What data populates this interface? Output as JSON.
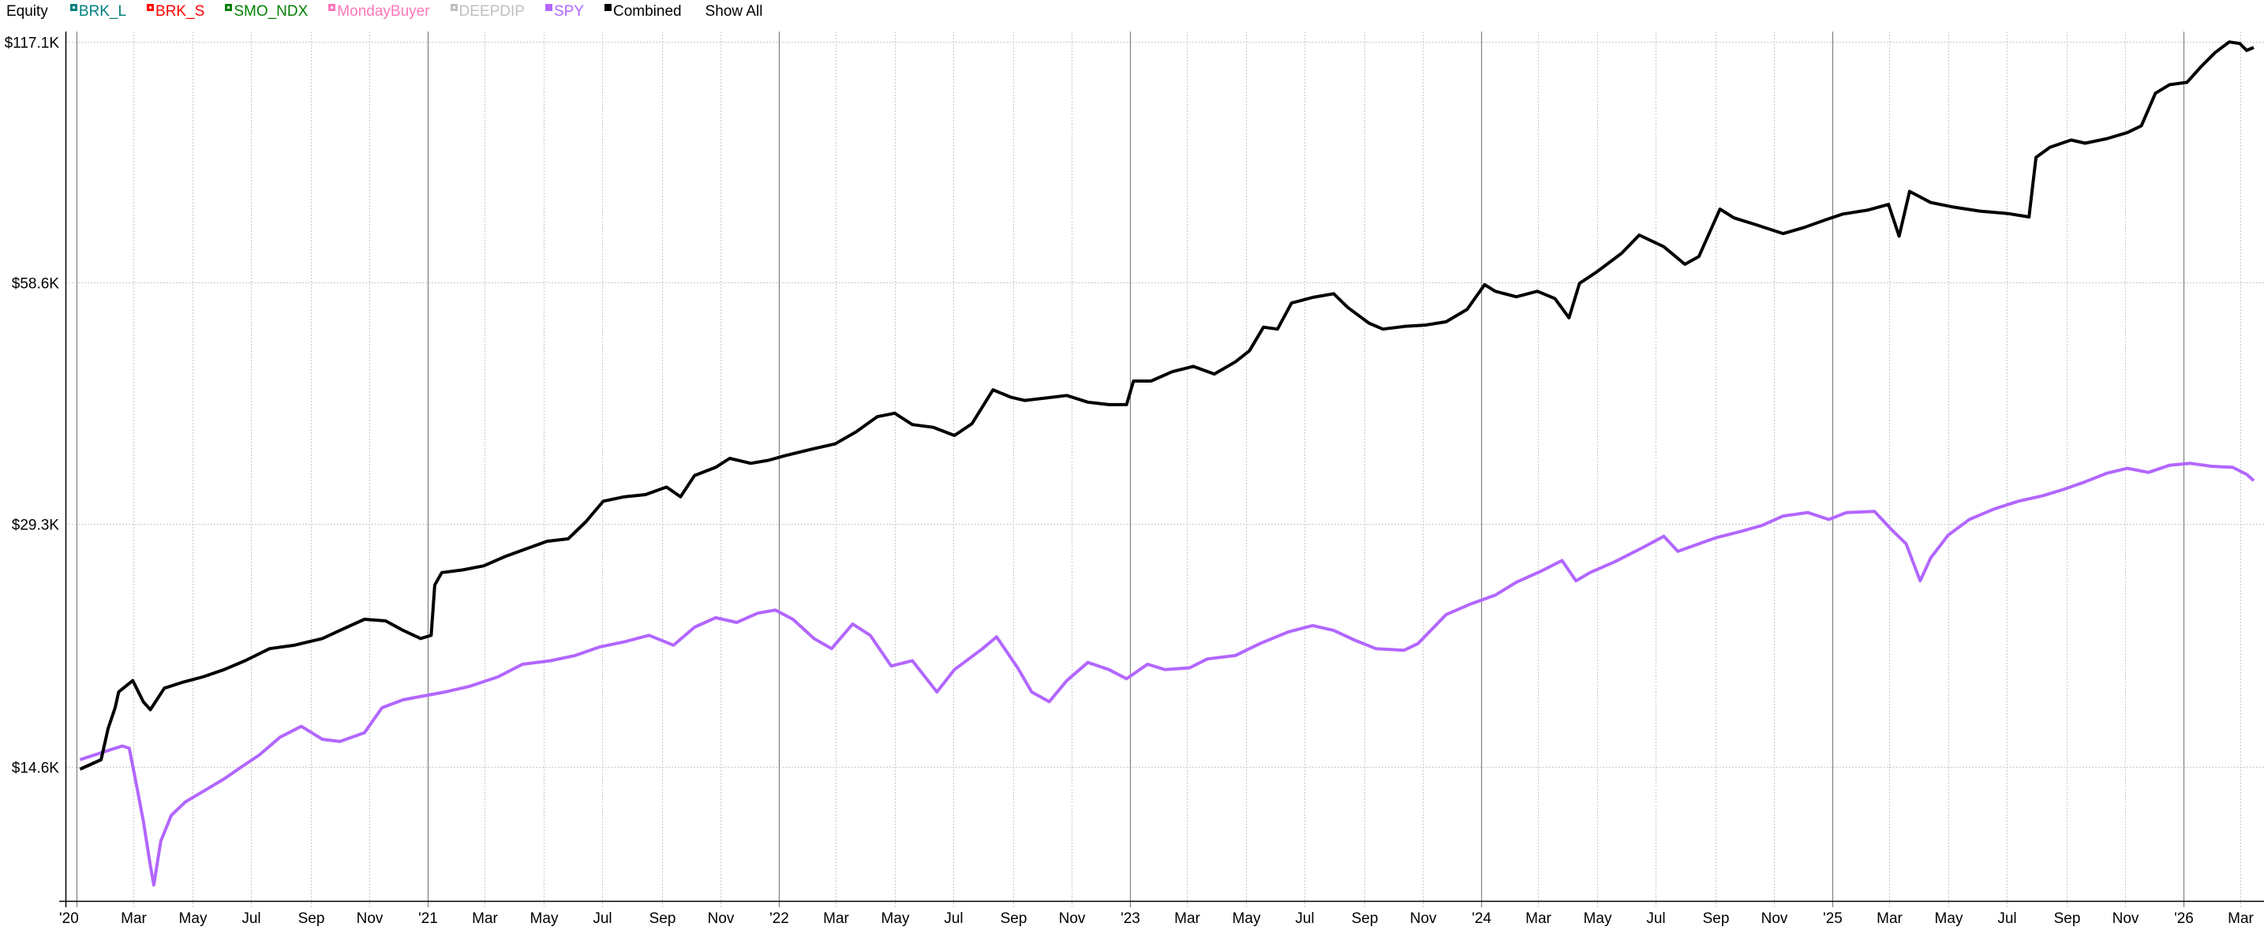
{
  "header": {
    "title": "Equity",
    "show_all_label": "Show All"
  },
  "legend": [
    {
      "label": "BRK_L",
      "color": "#008080",
      "enabled": false
    },
    {
      "label": "BRK_S",
      "color": "#ff0000",
      "enabled": false
    },
    {
      "label": "SMO_NDX",
      "color": "#008000",
      "enabled": false
    },
    {
      "label": "MondayBuyer",
      "color": "#ff77bb",
      "enabled": false
    },
    {
      "label": "DEEPDIP",
      "color": "#c0c0c0",
      "enabled": false
    },
    {
      "label": "SPY",
      "color": "#b266ff",
      "enabled": true
    },
    {
      "label": "Combined",
      "color": "#000000",
      "enabled": true
    }
  ],
  "chart_data": {
    "type": "line",
    "title": "Equity",
    "xlabel": "",
    "ylabel": "",
    "y_scale": "log",
    "ylim": [
      9800,
      120000
    ],
    "y_ticks": [
      {
        "value": 117100,
        "label": "$117.1K"
      },
      {
        "value": 58600,
        "label": "$58.6K"
      },
      {
        "value": 29300,
        "label": "$29.3K"
      },
      {
        "value": 14600,
        "label": "$14.6K"
      }
    ],
    "x_range": [
      2020.0,
      2026.2
    ],
    "x_ticks": [
      {
        "x": 2020.0,
        "label": "'20",
        "major": true
      },
      {
        "x": 2020.162,
        "label": "Mar"
      },
      {
        "x": 2020.33,
        "label": "May"
      },
      {
        "x": 2020.497,
        "label": "Jul"
      },
      {
        "x": 2020.667,
        "label": "Sep"
      },
      {
        "x": 2020.833,
        "label": "Nov"
      },
      {
        "x": 2021.0,
        "label": "'21",
        "major": true
      },
      {
        "x": 2021.162,
        "label": "Mar"
      },
      {
        "x": 2021.33,
        "label": "May"
      },
      {
        "x": 2021.497,
        "label": "Jul"
      },
      {
        "x": 2021.667,
        "label": "Sep"
      },
      {
        "x": 2021.833,
        "label": "Nov"
      },
      {
        "x": 2022.0,
        "label": "'22",
        "major": true
      },
      {
        "x": 2022.162,
        "label": "Mar"
      },
      {
        "x": 2022.33,
        "label": "May"
      },
      {
        "x": 2022.497,
        "label": "Jul"
      },
      {
        "x": 2022.667,
        "label": "Sep"
      },
      {
        "x": 2022.833,
        "label": "Nov"
      },
      {
        "x": 2023.0,
        "label": "'23",
        "major": true
      },
      {
        "x": 2023.162,
        "label": "Mar"
      },
      {
        "x": 2023.33,
        "label": "May"
      },
      {
        "x": 2023.497,
        "label": "Jul"
      },
      {
        "x": 2023.667,
        "label": "Sep"
      },
      {
        "x": 2023.833,
        "label": "Nov"
      },
      {
        "x": 2024.0,
        "label": "'24",
        "major": true
      },
      {
        "x": 2024.162,
        "label": "Mar"
      },
      {
        "x": 2024.33,
        "label": "May"
      },
      {
        "x": 2024.497,
        "label": "Jul"
      },
      {
        "x": 2024.667,
        "label": "Sep"
      },
      {
        "x": 2024.833,
        "label": "Nov"
      },
      {
        "x": 2025.0,
        "label": "'25",
        "major": true
      },
      {
        "x": 2025.162,
        "label": "Mar"
      },
      {
        "x": 2025.33,
        "label": "May"
      },
      {
        "x": 2025.497,
        "label": "Jul"
      },
      {
        "x": 2025.667,
        "label": "Sep"
      },
      {
        "x": 2025.833,
        "label": "Nov"
      },
      {
        "x": 2026.0,
        "label": "'26",
        "major": true
      },
      {
        "x": 2026.162,
        "label": "Mar"
      }
    ],
    "grid": true,
    "legend_position": "top",
    "series": [
      {
        "name": "Combined",
        "color": "#000000",
        "points": [
          [
            2020.01,
            14500
          ],
          [
            2020.04,
            14700
          ],
          [
            2020.07,
            14900
          ],
          [
            2020.09,
            16300
          ],
          [
            2020.11,
            17300
          ],
          [
            2020.12,
            18100
          ],
          [
            2020.16,
            18700
          ],
          [
            2020.19,
            17600
          ],
          [
            2020.21,
            17200
          ],
          [
            2020.25,
            18300
          ],
          [
            2020.3,
            18600
          ],
          [
            2020.36,
            18900
          ],
          [
            2020.42,
            19300
          ],
          [
            2020.48,
            19800
          ],
          [
            2020.55,
            20500
          ],
          [
            2020.62,
            20700
          ],
          [
            2020.7,
            21100
          ],
          [
            2020.76,
            21700
          ],
          [
            2020.82,
            22300
          ],
          [
            2020.88,
            22200
          ],
          [
            2020.93,
            21600
          ],
          [
            2020.98,
            21100
          ],
          [
            2021.01,
            21300
          ],
          [
            2021.02,
            24600
          ],
          [
            2021.04,
            25500
          ],
          [
            2021.1,
            25700
          ],
          [
            2021.16,
            26000
          ],
          [
            2021.22,
            26700
          ],
          [
            2021.28,
            27300
          ],
          [
            2021.34,
            27900
          ],
          [
            2021.4,
            28100
          ],
          [
            2021.45,
            29500
          ],
          [
            2021.5,
            31300
          ],
          [
            2021.56,
            31700
          ],
          [
            2021.62,
            31900
          ],
          [
            2021.68,
            32600
          ],
          [
            2021.72,
            31700
          ],
          [
            2021.76,
            33700
          ],
          [
            2021.82,
            34500
          ],
          [
            2021.86,
            35400
          ],
          [
            2021.92,
            34900
          ],
          [
            2021.97,
            35200
          ],
          [
            2022.02,
            35700
          ],
          [
            2022.1,
            36400
          ],
          [
            2022.16,
            36900
          ],
          [
            2022.22,
            38200
          ],
          [
            2022.28,
            39900
          ],
          [
            2022.33,
            40300
          ],
          [
            2022.38,
            39000
          ],
          [
            2022.44,
            38700
          ],
          [
            2022.5,
            37800
          ],
          [
            2022.55,
            39100
          ],
          [
            2022.61,
            43100
          ],
          [
            2022.66,
            42200
          ],
          [
            2022.7,
            41800
          ],
          [
            2022.76,
            42100
          ],
          [
            2022.82,
            42400
          ],
          [
            2022.88,
            41600
          ],
          [
            2022.94,
            41300
          ],
          [
            2022.99,
            41300
          ],
          [
            2023.01,
            44200
          ],
          [
            2023.06,
            44200
          ],
          [
            2023.12,
            45400
          ],
          [
            2023.18,
            46100
          ],
          [
            2023.24,
            45100
          ],
          [
            2023.3,
            46700
          ],
          [
            2023.34,
            48200
          ],
          [
            2023.38,
            51600
          ],
          [
            2023.42,
            51300
          ],
          [
            2023.46,
            55300
          ],
          [
            2023.52,
            56200
          ],
          [
            2023.58,
            56800
          ],
          [
            2023.62,
            54600
          ],
          [
            2023.68,
            52200
          ],
          [
            2023.72,
            51300
          ],
          [
            2023.78,
            51700
          ],
          [
            2023.84,
            51900
          ],
          [
            2023.9,
            52400
          ],
          [
            2023.96,
            54300
          ],
          [
            2024.01,
            58300
          ],
          [
            2024.04,
            57200
          ],
          [
            2024.1,
            56300
          ],
          [
            2024.16,
            57200
          ],
          [
            2024.21,
            56000
          ],
          [
            2024.25,
            53000
          ],
          [
            2024.28,
            58500
          ],
          [
            2024.33,
            60500
          ],
          [
            2024.4,
            63800
          ],
          [
            2024.45,
            67200
          ],
          [
            2024.52,
            65000
          ],
          [
            2024.58,
            61800
          ],
          [
            2024.62,
            63200
          ],
          [
            2024.68,
            72400
          ],
          [
            2024.72,
            70600
          ],
          [
            2024.78,
            69300
          ],
          [
            2024.86,
            67500
          ],
          [
            2024.92,
            68700
          ],
          [
            2024.98,
            70200
          ],
          [
            2025.03,
            71400
          ],
          [
            2025.1,
            72200
          ],
          [
            2025.16,
            73400
          ],
          [
            2025.19,
            67000
          ],
          [
            2025.22,
            76200
          ],
          [
            2025.28,
            73800
          ],
          [
            2025.34,
            72900
          ],
          [
            2025.42,
            72000
          ],
          [
            2025.5,
            71500
          ],
          [
            2025.56,
            70800
          ],
          [
            2025.58,
            84000
          ],
          [
            2025.62,
            86500
          ],
          [
            2025.68,
            88300
          ],
          [
            2025.72,
            87500
          ],
          [
            2025.78,
            88600
          ],
          [
            2025.84,
            90200
          ],
          [
            2025.88,
            92000
          ],
          [
            2025.92,
            101000
          ],
          [
            2025.96,
            103500
          ],
          [
            2026.01,
            104200
          ],
          [
            2026.05,
            109000
          ],
          [
            2026.09,
            113500
          ],
          [
            2026.13,
            117000
          ],
          [
            2026.16,
            116500
          ],
          [
            2026.18,
            114200
          ],
          [
            2026.2,
            115200
          ]
        ]
      },
      {
        "name": "SPY",
        "color": "#b266ff",
        "points": [
          [
            2020.01,
            14900
          ],
          [
            2020.05,
            15100
          ],
          [
            2020.09,
            15300
          ],
          [
            2020.13,
            15500
          ],
          [
            2020.15,
            15400
          ],
          [
            2020.17,
            13900
          ],
          [
            2020.19,
            12500
          ],
          [
            2020.21,
            11000
          ],
          [
            2020.22,
            10400
          ],
          [
            2020.24,
            11800
          ],
          [
            2020.27,
            12700
          ],
          [
            2020.31,
            13200
          ],
          [
            2020.36,
            13600
          ],
          [
            2020.42,
            14100
          ],
          [
            2020.47,
            14600
          ],
          [
            2020.52,
            15100
          ],
          [
            2020.58,
            15900
          ],
          [
            2020.64,
            16400
          ],
          [
            2020.7,
            15800
          ],
          [
            2020.75,
            15700
          ],
          [
            2020.82,
            16100
          ],
          [
            2020.87,
            17300
          ],
          [
            2020.93,
            17700
          ],
          [
            2020.99,
            17900
          ],
          [
            2021.05,
            18100
          ],
          [
            2021.12,
            18400
          ],
          [
            2021.2,
            18900
          ],
          [
            2021.27,
            19600
          ],
          [
            2021.35,
            19800
          ],
          [
            2021.42,
            20100
          ],
          [
            2021.49,
            20600
          ],
          [
            2021.56,
            20900
          ],
          [
            2021.63,
            21300
          ],
          [
            2021.7,
            20700
          ],
          [
            2021.76,
            21800
          ],
          [
            2021.82,
            22400
          ],
          [
            2021.88,
            22100
          ],
          [
            2021.94,
            22700
          ],
          [
            2021.99,
            22900
          ],
          [
            2022.04,
            22300
          ],
          [
            2022.1,
            21100
          ],
          [
            2022.15,
            20500
          ],
          [
            2022.21,
            22000
          ],
          [
            2022.26,
            21300
          ],
          [
            2022.32,
            19500
          ],
          [
            2022.38,
            19800
          ],
          [
            2022.45,
            18100
          ],
          [
            2022.5,
            19300
          ],
          [
            2022.58,
            20500
          ],
          [
            2022.62,
            21200
          ],
          [
            2022.68,
            19400
          ],
          [
            2022.72,
            18100
          ],
          [
            2022.77,
            17600
          ],
          [
            2022.82,
            18700
          ],
          [
            2022.88,
            19700
          ],
          [
            2022.94,
            19300
          ],
          [
            2022.99,
            18800
          ],
          [
            2023.05,
            19600
          ],
          [
            2023.1,
            19300
          ],
          [
            2023.17,
            19400
          ],
          [
            2023.22,
            19900
          ],
          [
            2023.3,
            20100
          ],
          [
            2023.37,
            20800
          ],
          [
            2023.45,
            21500
          ],
          [
            2023.52,
            21900
          ],
          [
            2023.58,
            21600
          ],
          [
            2023.64,
            21000
          ],
          [
            2023.7,
            20500
          ],
          [
            2023.78,
            20400
          ],
          [
            2023.82,
            20800
          ],
          [
            2023.9,
            22600
          ],
          [
            2023.97,
            23300
          ],
          [
            2024.04,
            23900
          ],
          [
            2024.1,
            24800
          ],
          [
            2024.17,
            25600
          ],
          [
            2024.23,
            26400
          ],
          [
            2024.27,
            24900
          ],
          [
            2024.31,
            25500
          ],
          [
            2024.38,
            26300
          ],
          [
            2024.46,
            27400
          ],
          [
            2024.52,
            28300
          ],
          [
            2024.56,
            27100
          ],
          [
            2024.6,
            27500
          ],
          [
            2024.67,
            28200
          ],
          [
            2024.74,
            28700
          ],
          [
            2024.8,
            29200
          ],
          [
            2024.86,
            30000
          ],
          [
            2024.93,
            30300
          ],
          [
            2024.99,
            29700
          ],
          [
            2025.04,
            30300
          ],
          [
            2025.12,
            30400
          ],
          [
            2025.17,
            28800
          ],
          [
            2025.21,
            27700
          ],
          [
            2025.25,
            24900
          ],
          [
            2025.28,
            26600
          ],
          [
            2025.33,
            28400
          ],
          [
            2025.39,
            29700
          ],
          [
            2025.46,
            30600
          ],
          [
            2025.53,
            31300
          ],
          [
            2025.6,
            31800
          ],
          [
            2025.66,
            32400
          ],
          [
            2025.72,
            33100
          ],
          [
            2025.78,
            33900
          ],
          [
            2025.84,
            34400
          ],
          [
            2025.9,
            34000
          ],
          [
            2025.96,
            34700
          ],
          [
            2026.02,
            34900
          ],
          [
            2026.08,
            34600
          ],
          [
            2026.14,
            34500
          ],
          [
            2026.18,
            33800
          ],
          [
            2026.2,
            33200
          ]
        ]
      }
    ]
  }
}
